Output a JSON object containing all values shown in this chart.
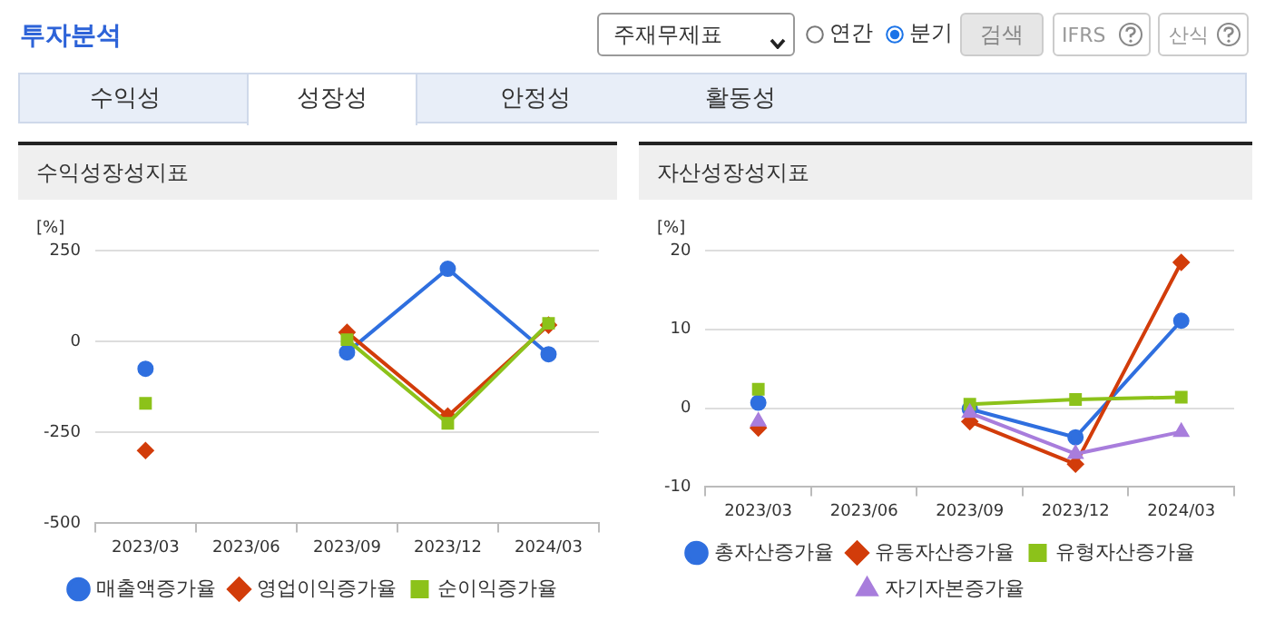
{
  "chart_data": [
    {
      "type": "line",
      "title": "수익성장성지표",
      "ylabel": "[%]",
      "categories": [
        "2023/03",
        "2023/06",
        "2023/09",
        "2023/12",
        "2024/03"
      ],
      "ylim": [
        -500,
        250
      ],
      "yticks": [
        250,
        0,
        -250,
        -500
      ],
      "grid": "y",
      "legend": "bottom",
      "annotations": [
        "투자분석",
        "주재무제표",
        "연간",
        "분기",
        "검색",
        "IFRS",
        "산식",
        "수익성",
        "성장성",
        "안정성",
        "활동성"
      ],
      "series": [
        {
          "name": "매출액증가율",
          "color": "#2f6fdf",
          "marker": "circle",
          "values": [
            -75,
            null,
            -30,
            200,
            -35
          ]
        },
        {
          "name": "영업이익증가율",
          "color": "#d23c0a",
          "marker": "diamond",
          "values": [
            -300,
            null,
            25,
            -205,
            45
          ]
        },
        {
          "name": "순이익증가율",
          "color": "#8cc21a",
          "marker": "square",
          "values": [
            -170,
            null,
            5,
            -225,
            50
          ]
        }
      ]
    },
    {
      "type": "line",
      "title": "자산성장성지표",
      "ylabel": "[%]",
      "categories": [
        "2023/03",
        "2023/06",
        "2023/09",
        "2023/12",
        "2024/03"
      ],
      "ylim": [
        -10,
        20
      ],
      "yticks": [
        20,
        10,
        0,
        -10
      ],
      "grid": "y",
      "legend": "bottom",
      "series": [
        {
          "name": "총자산증가율",
          "color": "#2f6fdf",
          "marker": "circle",
          "values": [
            0.7,
            null,
            -0.1,
            -3.7,
            11.1
          ]
        },
        {
          "name": "유동자산증가율",
          "color": "#d23c0a",
          "marker": "diamond",
          "values": [
            -2.5,
            null,
            -1.7,
            -7.1,
            18.5
          ]
        },
        {
          "name": "유형자산증가율",
          "color": "#8cc21a",
          "marker": "square",
          "values": [
            2.4,
            null,
            0.5,
            1.1,
            1.4
          ]
        },
        {
          "name": "자기자본증가율",
          "color": "#a87ddc",
          "marker": "triangle",
          "values": [
            -1.7,
            null,
            -0.6,
            -5.8,
            -3.0
          ]
        }
      ]
    }
  ]
}
